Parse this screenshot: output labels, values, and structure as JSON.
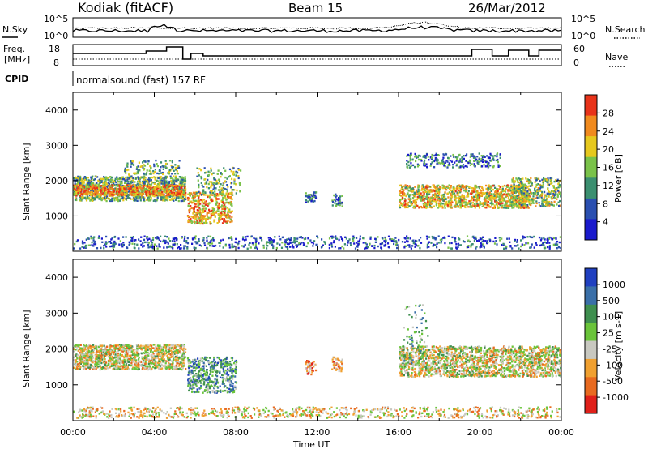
{
  "header": {
    "title": "Kodiak (fitACF)",
    "beam": "Beam 15",
    "date": "26/Mar/2012"
  },
  "top_panel": {
    "nsky_label": "N.Sky",
    "nsearch_label": "N.Search",
    "left_ticks": [
      "10^5",
      "10^0"
    ],
    "right_ticks": [
      "10^5",
      "10^0"
    ],
    "freq_label_line1": "Freq.",
    "freq_label_line2": "[MHz]",
    "freq_ticks": [
      "18",
      "8"
    ],
    "nave_label": "Nave",
    "nave_ticks": [
      "60",
      "0"
    ],
    "cpid_label": "CPID",
    "cpid_text": "normalsound (fast) 157 RF"
  },
  "chart_data": [
    {
      "type": "heatmap",
      "panel": "power",
      "ylabel": "Slant Range [km]",
      "y_ticks": [
        "1000",
        "2000",
        "3000",
        "4000"
      ],
      "ylim": [
        0,
        4500
      ],
      "x_ticks": [
        "00:00",
        "04:00",
        "08:00",
        "12:00",
        "16:00",
        "20:00",
        "00:00"
      ],
      "colorbar": {
        "label": "Power [dB]",
        "ticks": [
          "4",
          "8",
          "12",
          "16",
          "20",
          "24",
          "28"
        ],
        "colors": [
          "#1a1acc",
          "#2a4fb0",
          "#3b8f70",
          "#7ac24a",
          "#e6c81e",
          "#f08a1e",
          "#e8331a"
        ]
      },
      "series": [
        {
          "range_km": [
            1400,
            2100
          ],
          "time_h": [
            0.0,
            5.5
          ],
          "level_db": 18
        },
        {
          "range_km": [
            800,
            2300
          ],
          "time_h": [
            5.5,
            8.0
          ],
          "level_db": 22
        },
        {
          "range_km": [
            1200,
            1700
          ],
          "time_h": [
            11.5,
            13.2
          ],
          "level_db": 10
        },
        {
          "range_km": [
            1200,
            2400
          ],
          "time_h": [
            16.0,
            24.0
          ],
          "level_db": 20
        }
      ]
    },
    {
      "type": "heatmap",
      "panel": "velocity",
      "ylabel": "Slant Range [km]",
      "y_ticks": [
        "1000",
        "2000",
        "3000",
        "4000"
      ],
      "ylim": [
        0,
        4500
      ],
      "x_ticks": [
        "00:00",
        "04:00",
        "08:00",
        "12:00",
        "16:00",
        "20:00",
        "00:00"
      ],
      "xlabel": "Time UT",
      "colorbar": {
        "label": "Velocity [m s-1]",
        "ticks": [
          "1000",
          "500",
          "100",
          "25",
          "-25",
          "-100",
          "-500",
          "-1000"
        ],
        "colors": [
          "#2040c0",
          "#3a6fa8",
          "#3f8f4f",
          "#6ac43a",
          "#c8c8c0",
          "#f0a030",
          "#e86a20",
          "#e0201a"
        ]
      }
    }
  ]
}
